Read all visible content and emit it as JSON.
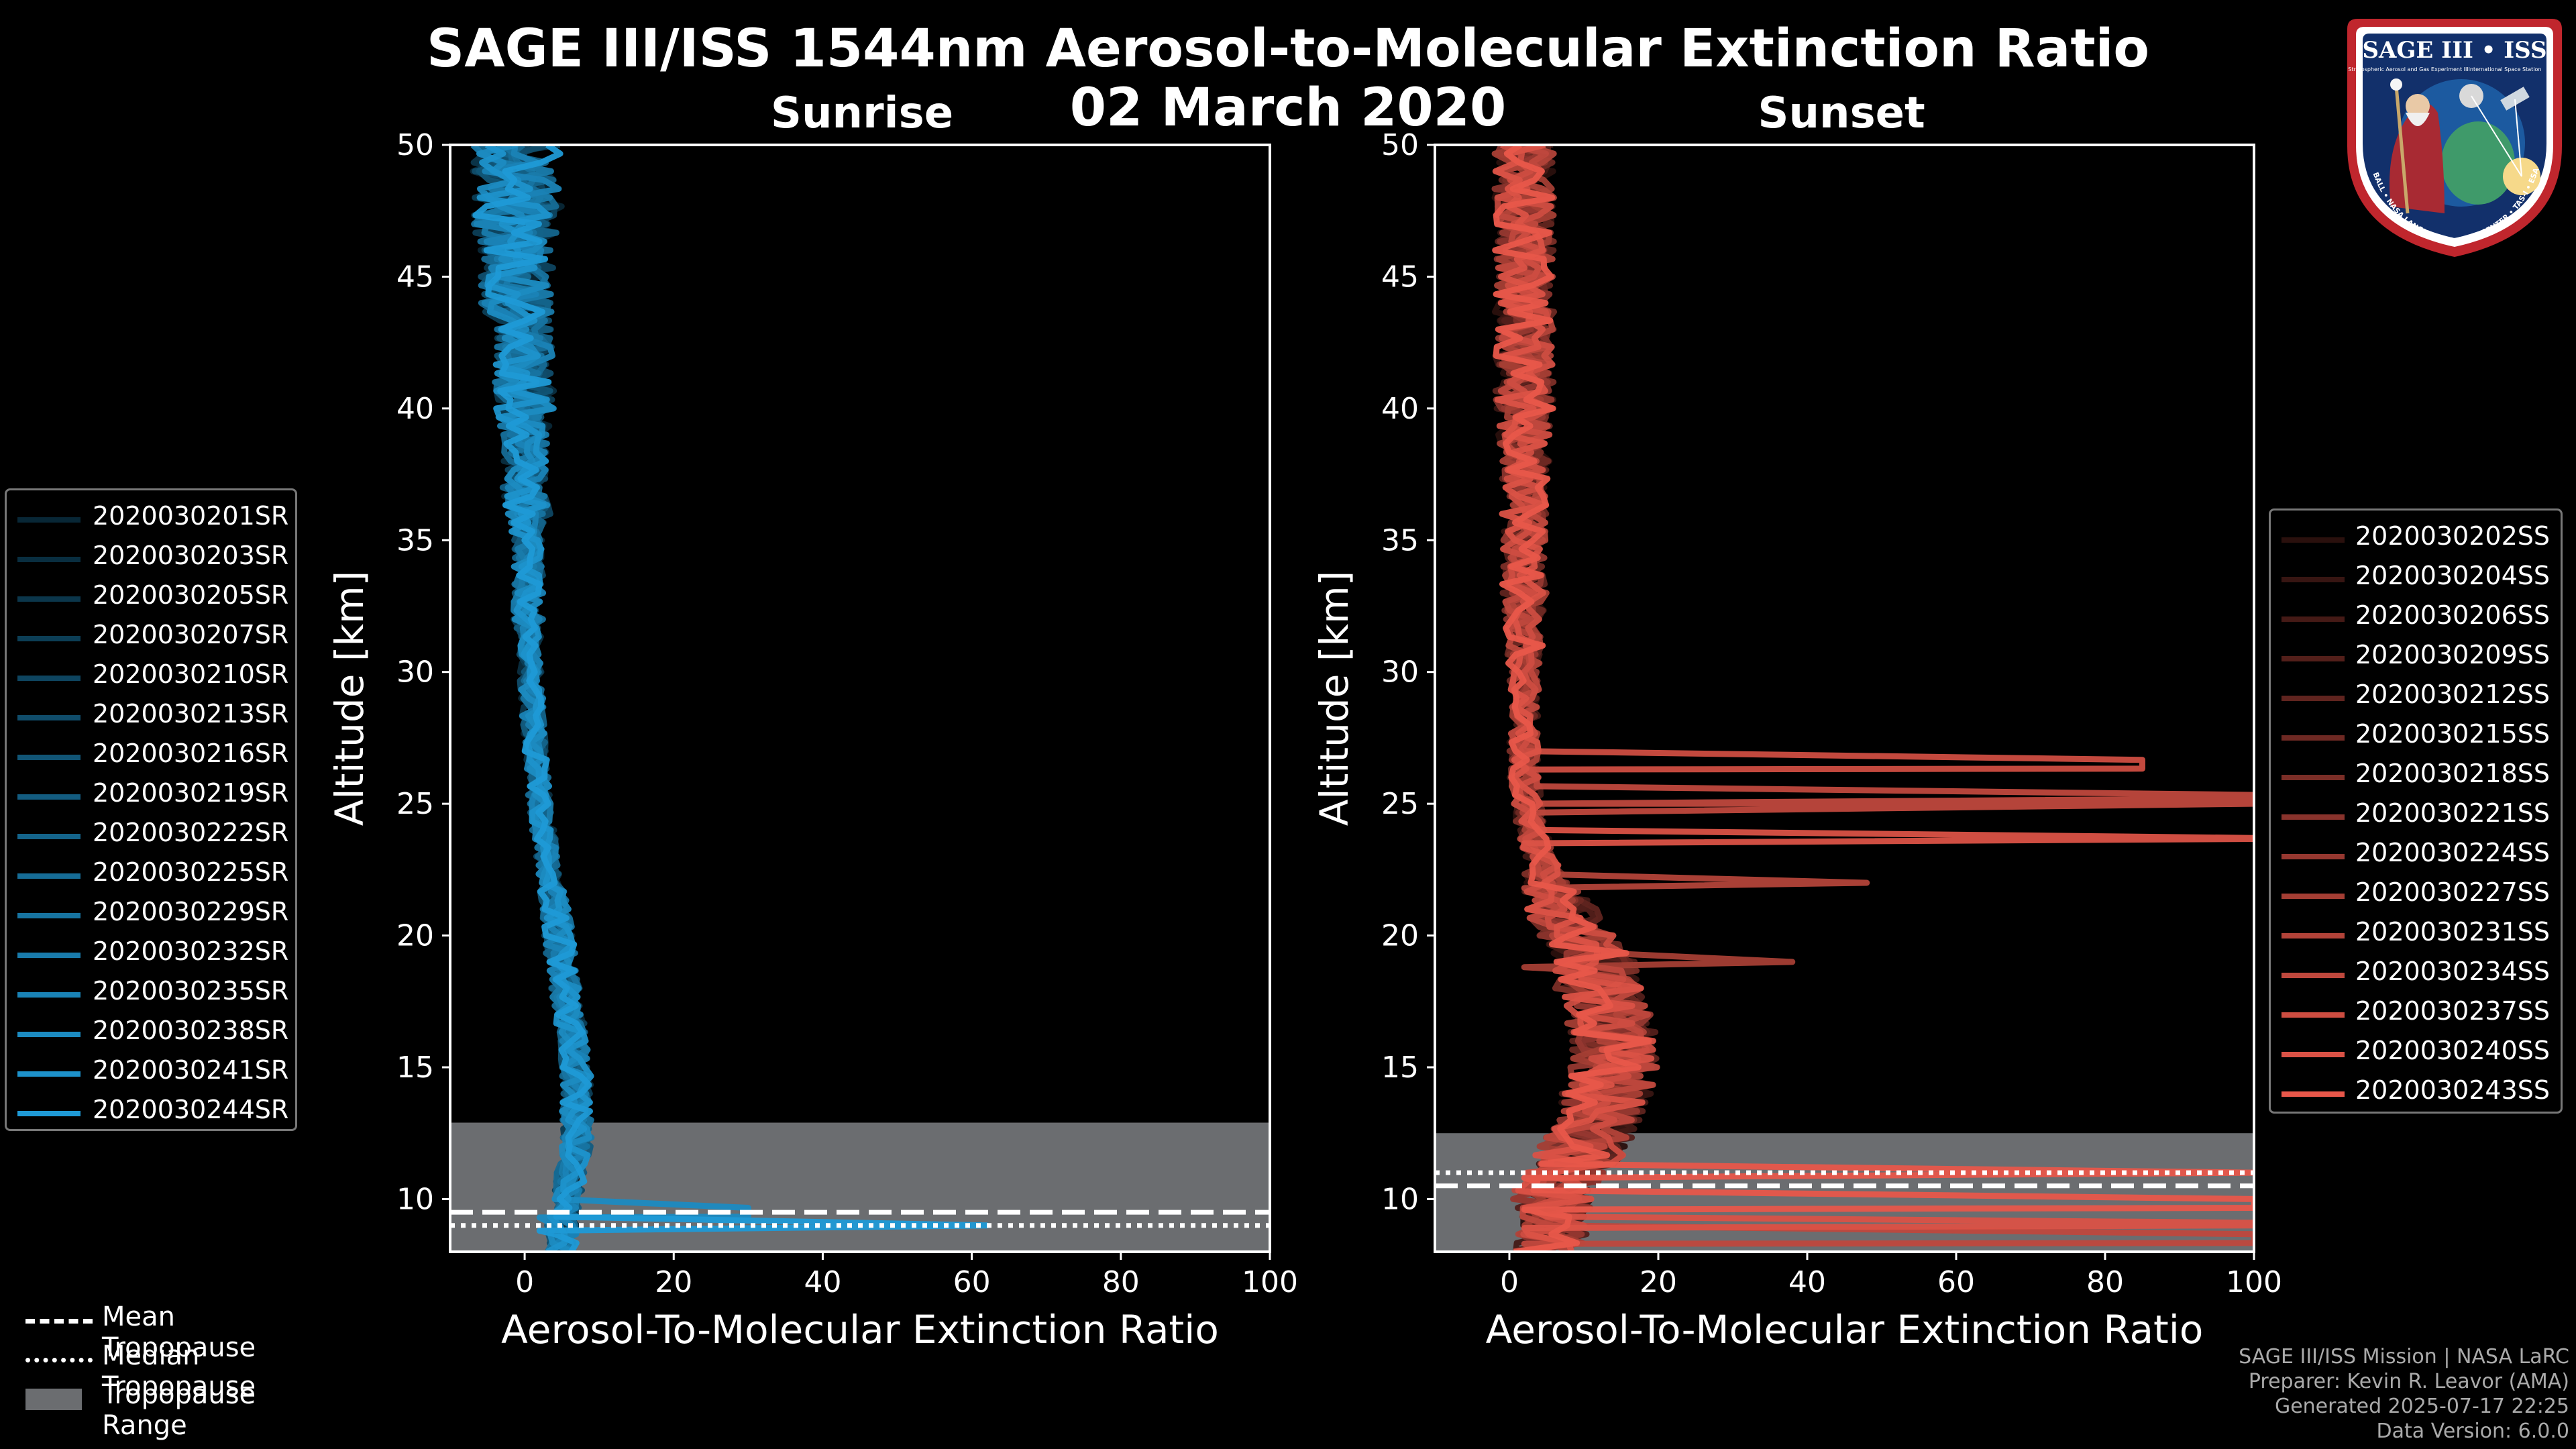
{
  "title_line1": "SAGE III/ISS 1544nm Aerosol-to-Molecular Extinction Ratio",
  "title_line2": "02 March 2020",
  "panels": {
    "sunrise_title": "Sunrise",
    "sunset_title": "Sunset"
  },
  "colors": {
    "sunrise": "#1f9ad6",
    "sunset": "#e8574a",
    "tropopause_range": "#6b6d70",
    "background": "#000000"
  },
  "legend_sunrise": [
    "2020030201SR",
    "2020030203SR",
    "2020030205SR",
    "2020030207SR",
    "2020030210SR",
    "2020030213SR",
    "2020030216SR",
    "2020030219SR",
    "2020030222SR",
    "2020030225SR",
    "2020030229SR",
    "2020030232SR",
    "2020030235SR",
    "2020030238SR",
    "2020030241SR",
    "2020030244SR"
  ],
  "legend_sunset": [
    "2020030202SS",
    "2020030204SS",
    "2020030206SS",
    "2020030209SS",
    "2020030212SS",
    "2020030215SS",
    "2020030218SS",
    "2020030221SS",
    "2020030224SS",
    "2020030227SS",
    "2020030231SS",
    "2020030234SS",
    "2020030237SS",
    "2020030240SS",
    "2020030243SS"
  ],
  "bottom_legend": {
    "mean": "Mean Tropopause",
    "median": "Median Tropopause",
    "range": "Tropopause Range"
  },
  "footer": {
    "line1": "SAGE III/ISS Mission | NASA LaRC",
    "line2": "Preparer: Kevin R. Leavor (AMA)",
    "line3": "Generated 2025-07-17 22:25",
    "line4": "Data Version: 6.0.0"
  },
  "logo": {
    "name": "SAGE III • ISS",
    "subtitle_left": "Stratospheric Aerosol and Gas Experiment III",
    "subtitle_right": "International Space Station",
    "ring": "BALL • NASA LANGLEY RESEARCH CENTER • TAS-I • ESA"
  },
  "chart_data": [
    {
      "type": "line",
      "panel": "sunrise",
      "title": "Sunrise",
      "xlabel": "Aerosol-To-Molecular Extinction Ratio",
      "ylabel": "Altitude [km]",
      "xlim": [
        -10,
        100
      ],
      "ylim": [
        8,
        50
      ],
      "xticks": [
        0,
        20,
        40,
        60,
        80,
        100
      ],
      "yticks": [
        10,
        15,
        20,
        25,
        30,
        35,
        40,
        45,
        50
      ],
      "tropopause": {
        "mean": 9.5,
        "median": 9.0,
        "range": [
          8.0,
          12.9
        ]
      },
      "profile_template": {
        "altitudes": [
          8,
          9,
          10,
          11,
          12,
          13,
          14,
          15,
          16,
          17,
          18,
          19,
          20,
          21,
          22,
          23,
          24,
          25,
          26,
          27,
          28,
          29,
          30,
          31,
          32,
          33,
          34,
          35,
          36,
          37,
          38,
          39,
          40,
          41,
          42,
          43,
          44,
          45,
          46,
          47,
          48,
          49,
          50
        ],
        "center": [
          5,
          5,
          6,
          6,
          7,
          7,
          7,
          7,
          6.5,
          6,
          5.5,
          5,
          4.5,
          4,
          3.5,
          3,
          2.5,
          2,
          1.8,
          1.5,
          1.2,
          1,
          0.8,
          0.6,
          0.5,
          0.5,
          0.5,
          0.5,
          0.5,
          0,
          0,
          0,
          0,
          0,
          0,
          0,
          -1,
          -1,
          -1,
          -1,
          -1,
          -1,
          -1
        ],
        "spread": [
          2,
          2,
          2,
          2,
          2,
          2,
          2,
          2,
          2,
          2,
          2,
          2,
          2,
          2,
          1.5,
          1.5,
          1.5,
          1.5,
          1.5,
          1.5,
          1.5,
          1.5,
          1.5,
          1.5,
          2,
          2,
          2,
          2,
          3,
          3,
          3,
          3,
          4,
          4,
          4,
          4,
          5,
          5,
          5,
          6,
          6,
          6,
          6
        ]
      },
      "spikes": [
        {
          "series": 15,
          "altitude": 9.0,
          "value": 62
        },
        {
          "series": 13,
          "altitude": 9.5,
          "value": 30
        }
      ]
    },
    {
      "type": "line",
      "panel": "sunset",
      "title": "Sunset",
      "xlabel": "Aerosol-To-Molecular Extinction Ratio",
      "ylabel": "Altitude [km]",
      "xlim": [
        -10,
        100
      ],
      "ylim": [
        8,
        50
      ],
      "xticks": [
        0,
        20,
        40,
        60,
        80,
        100
      ],
      "yticks": [
        10,
        15,
        20,
        25,
        30,
        35,
        40,
        45,
        50
      ],
      "tropopause": {
        "mean": 10.5,
        "median": 11.0,
        "range": [
          8.0,
          12.5
        ]
      },
      "profile_template": {
        "altitudes": [
          8,
          9,
          10,
          11,
          12,
          13,
          14,
          15,
          16,
          17,
          18,
          19,
          20,
          21,
          22,
          23,
          24,
          25,
          26,
          27,
          28,
          29,
          30,
          31,
          32,
          33,
          34,
          35,
          36,
          37,
          38,
          39,
          40,
          41,
          42,
          43,
          44,
          45,
          46,
          47,
          48,
          49,
          50
        ],
        "center": [
          5,
          6,
          6,
          8,
          10,
          12,
          13,
          14,
          14,
          13,
          12,
          11,
          9,
          7,
          5,
          4,
          3,
          2.5,
          2,
          2,
          2,
          2,
          2,
          2,
          2,
          2,
          2,
          2,
          2,
          2,
          2,
          2,
          2,
          2,
          2,
          2,
          2,
          2,
          2,
          2,
          2,
          2,
          2
        ],
        "spread": [
          5,
          5,
          6,
          6,
          6,
          6,
          6,
          6,
          6,
          6,
          6,
          6,
          5,
          5,
          3,
          2,
          2,
          2,
          2,
          2,
          2,
          2,
          2,
          2.5,
          2.5,
          3,
          3,
          3,
          3,
          3,
          3.5,
          3.5,
          4,
          4,
          4,
          4,
          4,
          4,
          4,
          4,
          4,
          4,
          4
        ]
      },
      "spikes": [
        {
          "series": 12,
          "altitude": 26.5,
          "value": 85
        },
        {
          "series": 11,
          "altitude": 25.2,
          "value": 100
        },
        {
          "series": 13,
          "altitude": 23.7,
          "value": 100
        },
        {
          "series": 10,
          "altitude": 22,
          "value": 48
        },
        {
          "series": 9,
          "altitude": 19,
          "value": 38
        },
        {
          "series": 14,
          "altitude": 11,
          "value": 100
        },
        {
          "series": 14,
          "altitude": 9.8,
          "value": 100
        },
        {
          "series": 13,
          "altitude": 9.1,
          "value": 100
        },
        {
          "series": 11,
          "altitude": 8.5,
          "value": 100
        }
      ]
    }
  ]
}
